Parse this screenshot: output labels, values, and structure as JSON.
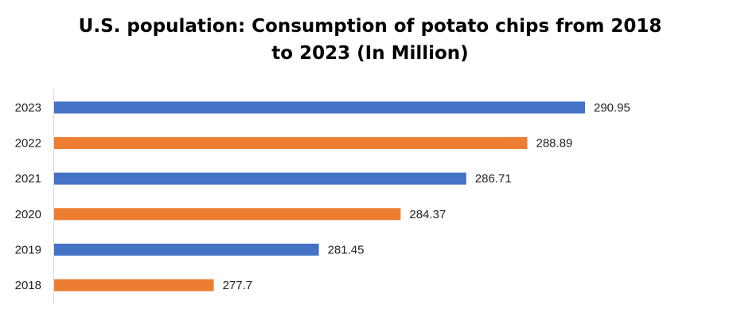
{
  "chart_data": {
    "type": "bar",
    "orientation": "horizontal",
    "title": "U.S. population: Consumption of potato chips from 2018 to 2023 (In Million)",
    "categories": [
      "2023",
      "2022",
      "2021",
      "2020",
      "2019",
      "2018"
    ],
    "values": [
      290.95,
      288.89,
      286.71,
      284.37,
      281.45,
      277.7
    ],
    "value_labels": [
      "290.95",
      "288.89",
      "286.71",
      "284.37",
      "281.45",
      "277.7"
    ],
    "bar_colors": [
      "#4472C4",
      "#ED7D31",
      "#4472C4",
      "#ED7D31",
      "#4472C4",
      "#ED7D31"
    ],
    "xlim": [
      272,
      292
    ],
    "grid": false,
    "legend": "none"
  }
}
